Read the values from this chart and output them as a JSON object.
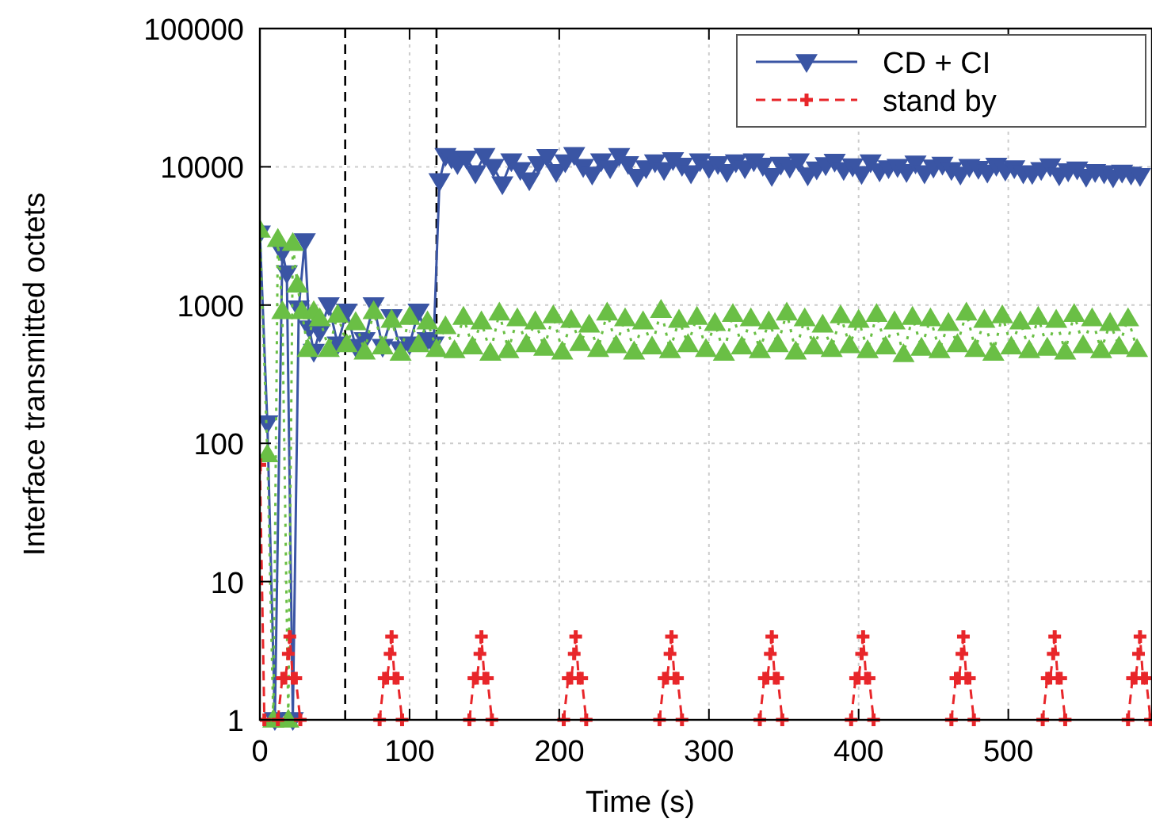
{
  "chart_data": {
    "type": "line",
    "xlabel": "Time (s)",
    "ylabel": "Interface transmitted octets",
    "xlim": [
      0,
      596
    ],
    "xticks": [
      0,
      100,
      200,
      300,
      400,
      500
    ],
    "ylim": [
      1,
      100000
    ],
    "yticks": [
      1,
      10,
      100,
      1000,
      10000,
      100000
    ],
    "log": "y",
    "grid": true,
    "legend": "top right",
    "ref_lines": [
      {
        "axis": "x",
        "value": 57,
        "color": "#000000",
        "line_style": "dashed"
      },
      {
        "axis": "x",
        "value": 118,
        "color": "#000000",
        "line_style": "dashed"
      }
    ],
    "series": [
      {
        "name": "CD + CI",
        "color": "#3a55a4",
        "marker": "triangle-down",
        "line_style": "solid",
        "x": [
          0,
          5,
          10,
          15,
          18,
          22,
          26,
          30,
          33,
          36,
          40,
          46,
          52,
          58,
          64,
          70,
          76,
          82,
          88,
          94,
          100,
          106,
          112,
          116,
          120,
          124,
          128,
          132,
          138,
          144,
          150,
          156,
          162,
          168,
          174,
          180,
          186,
          192,
          198,
          204,
          210,
          216,
          222,
          228,
          234,
          240,
          246,
          252,
          258,
          264,
          270,
          276,
          282,
          288,
          294,
          300,
          306,
          312,
          318,
          324,
          330,
          336,
          342,
          348,
          354,
          360,
          366,
          372,
          378,
          384,
          390,
          396,
          402,
          408,
          414,
          420,
          426,
          432,
          438,
          444,
          450,
          456,
          462,
          468,
          474,
          480,
          486,
          492,
          498,
          504,
          510,
          516,
          522,
          528,
          534,
          540,
          546,
          552,
          558,
          564,
          570,
          576,
          582,
          588
        ],
        "values": [
          3300,
          140,
          1,
          2400,
          1700,
          1,
          950,
          2900,
          680,
          460,
          640,
          1000,
          520,
          900,
          500,
          560,
          1000,
          500,
          820,
          480,
          520,
          900,
          560,
          520,
          7900,
          12000,
          11500,
          10500,
          11500,
          9000,
          12000,
          10000,
          7500,
          11000,
          9500,
          8000,
          10500,
          11800,
          9200,
          10800,
          12200,
          10000,
          8800,
          11000,
          9800,
          12000,
          10500,
          8500,
          9800,
          10800,
          9500,
          11200,
          10200,
          9000,
          11000,
          9800,
          10500,
          9200,
          10800,
          9800,
          11000,
          10200,
          8600,
          10400,
          9900,
          11000,
          8700,
          9600,
          10300,
          10900,
          9500,
          10100,
          8900,
          10800,
          9300,
          9800,
          10000,
          9200,
          10600,
          9000,
          9900,
          10400,
          9500,
          8800,
          10000,
          9700,
          9100,
          10200,
          9400,
          9800,
          9000,
          8900,
          9500,
          10100,
          8700,
          9300,
          9600,
          8500,
          9200,
          9000,
          8400,
          9100,
          8800,
          8600
        ]
      },
      {
        "color": "#6abf45",
        "marker": "triangle",
        "line_style": "dotted",
        "x": [
          0,
          5,
          9,
          12,
          15,
          19,
          22,
          25,
          28,
          32,
          36,
          40,
          46,
          52,
          58,
          64,
          70,
          76,
          82,
          88,
          94,
          100,
          106,
          112,
          118,
          124,
          130,
          136,
          142,
          148,
          154,
          160,
          166,
          172,
          178,
          184,
          190,
          196,
          202,
          208,
          214,
          220,
          226,
          232,
          238,
          244,
          250,
          256,
          262,
          268,
          274,
          280,
          286,
          292,
          298,
          304,
          310,
          316,
          322,
          328,
          334,
          340,
          346,
          352,
          358,
          364,
          370,
          376,
          382,
          388,
          394,
          400,
          406,
          412,
          418,
          424,
          430,
          436,
          442,
          448,
          454,
          460,
          466,
          472,
          478,
          484,
          490,
          496,
          502,
          508,
          514,
          520,
          526,
          532,
          538,
          544,
          550,
          556,
          562,
          568,
          574,
          580,
          586
        ],
        "values": [
          3500,
          83,
          1,
          3000,
          900,
          1,
          2800,
          1400,
          900,
          480,
          900,
          800,
          480,
          850,
          520,
          750,
          460,
          900,
          500,
          780,
          450,
          820,
          520,
          760,
          480,
          700,
          470,
          820,
          500,
          760,
          450,
          880,
          470,
          800,
          520,
          760,
          490,
          840,
          460,
          780,
          530,
          720,
          480,
          880,
          510,
          800,
          460,
          760,
          500,
          920,
          470,
          780,
          520,
          820,
          480,
          740,
          450,
          860,
          500,
          800,
          470,
          760,
          520,
          880,
          460,
          800,
          500,
          720,
          480,
          840,
          510,
          780,
          470,
          860,
          500,
          760,
          440,
          820,
          490,
          800,
          470,
          740,
          520,
          880,
          480,
          780,
          450,
          840,
          500,
          760,
          470,
          820,
          490,
          780,
          460,
          860,
          510,
          800,
          470,
          740,
          500,
          800,
          480
        ]
      },
      {
        "name": "stand by",
        "color": "#e8262a",
        "marker": "cross",
        "line_style": "dashed",
        "x": [
          0,
          3,
          5,
          12,
          15,
          17,
          19,
          20,
          22,
          24,
          27,
          29,
          80,
          83,
          85,
          87,
          88,
          90,
          92,
          95,
          97,
          140,
          143,
          145,
          147,
          148,
          150,
          152,
          155,
          157,
          203,
          206,
          208,
          210,
          211,
          213,
          215,
          218,
          220,
          267,
          270,
          272,
          274,
          275,
          277,
          279,
          282,
          284,
          334,
          337,
          339,
          341,
          342,
          344,
          346,
          349,
          351,
          395,
          398,
          400,
          402,
          403,
          405,
          407,
          410,
          412,
          462,
          465,
          467,
          469,
          470,
          472,
          474,
          477,
          479,
          523,
          526,
          528,
          530,
          531,
          533,
          535,
          538,
          540,
          580,
          583,
          585,
          587,
          588,
          590,
          592,
          595
        ],
        "values": [
          70,
          1,
          null,
          1,
          2,
          2,
          3,
          4,
          2,
          2,
          1,
          null,
          1,
          2,
          2,
          3,
          4,
          2,
          2,
          1,
          null,
          1,
          2,
          2,
          3,
          4,
          2,
          2,
          1,
          null,
          1,
          2,
          2,
          3,
          4,
          2,
          2,
          1,
          null,
          1,
          2,
          2,
          3,
          4,
          2,
          2,
          1,
          null,
          1,
          2,
          2,
          3,
          4,
          2,
          2,
          1,
          null,
          1,
          2,
          2,
          3,
          4,
          2,
          2,
          1,
          null,
          1,
          2,
          2,
          3,
          4,
          2,
          2,
          1,
          null,
          1,
          2,
          2,
          3,
          4,
          2,
          2,
          1,
          null,
          1,
          2,
          2,
          3,
          4,
          2,
          2,
          1
        ]
      }
    ]
  }
}
